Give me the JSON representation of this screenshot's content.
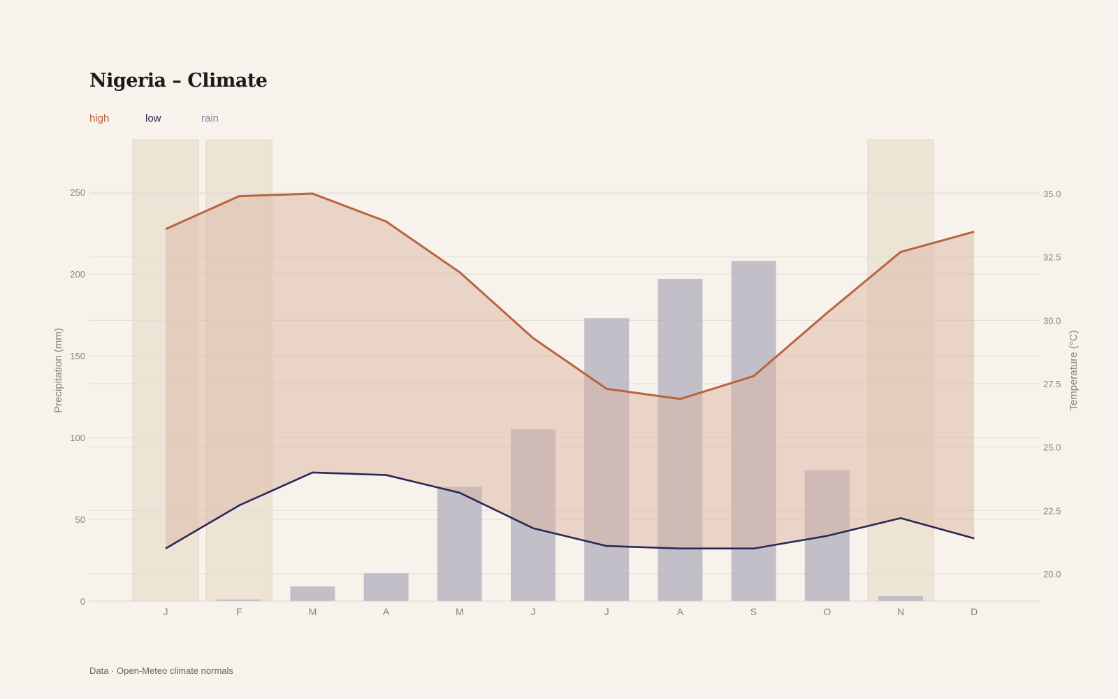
{
  "title": "Nigeria – Climate",
  "legend": [
    {
      "label": "high",
      "color": "#b8643f"
    },
    {
      "label": "low",
      "color": "#2b2858"
    },
    {
      "label": "rain",
      "color": "#8a87a3"
    }
  ],
  "footer": "Data · Open-Meteo climate normals",
  "colors": {
    "high_line": "#b8643f",
    "high_fill": "#dcb6a2",
    "low_line": "#2b2858",
    "rain_bar": "#b4b1bf",
    "dry_band": "#e9dfcf",
    "grid": "#e3dcd3",
    "axis_text": "#8b827a"
  },
  "chart_data": {
    "type": "bar+line",
    "categories": [
      "J",
      "F",
      "M",
      "A",
      "M",
      "J",
      "J",
      "A",
      "S",
      "O",
      "N",
      "D"
    ],
    "dry_season_months": [
      "J",
      "F",
      "N"
    ],
    "series": [
      {
        "name": "rain",
        "axis": "left",
        "kind": "bar",
        "values": [
          0,
          1,
          9,
          17,
          70,
          105,
          173,
          197,
          208,
          80,
          3,
          0
        ]
      },
      {
        "name": "high",
        "axis": "right",
        "kind": "line",
        "values": [
          33.6,
          34.9,
          35.0,
          33.9,
          31.9,
          29.3,
          27.3,
          26.9,
          27.8,
          30.3,
          32.7,
          33.5
        ]
      },
      {
        "name": "low",
        "axis": "right",
        "kind": "line",
        "values": [
          21.0,
          22.7,
          24.0,
          23.9,
          23.2,
          21.8,
          21.1,
          21.0,
          21.0,
          21.5,
          22.2,
          21.4
        ]
      }
    ],
    "y_left": {
      "label": "Precipitation (mm)",
      "ticks": [
        0,
        50,
        100,
        150,
        200,
        250
      ],
      "range": [
        0,
        250
      ]
    },
    "y_right": {
      "label": "Temperature (°C)",
      "ticks": [
        "20.0",
        "22.5",
        "25.0",
        "27.5",
        "30.0",
        "32.5",
        "35.0"
      ],
      "range": [
        19.0,
        35.0
      ]
    },
    "grid": true,
    "legend_position": "top-left"
  }
}
